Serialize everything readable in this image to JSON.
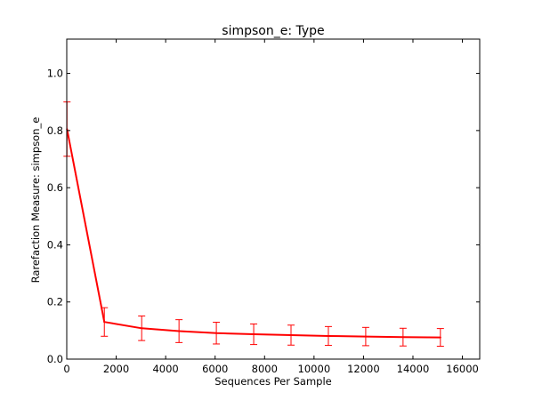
{
  "chart_data": {
    "type": "line",
    "title": "simpson_e: Type",
    "xlabel": "Sequences Per Sample",
    "ylabel": "Rarefaction Measure: simpson_e",
    "xlim": [
      0,
      16700
    ],
    "ylim": [
      0,
      1.12
    ],
    "xticks": [
      0,
      2000,
      4000,
      6000,
      8000,
      10000,
      12000,
      14000,
      16000
    ],
    "xtick_labels": [
      "0",
      "2000",
      "4000",
      "6000",
      "8000",
      "10000",
      "12000",
      "14000",
      "16000"
    ],
    "yticks": [
      0.0,
      0.2,
      0.4,
      0.6,
      0.8,
      1.0
    ],
    "ytick_labels": [
      "0.0",
      "0.2",
      "0.4",
      "0.6",
      "0.8",
      "1.0"
    ],
    "grid": false,
    "series": [
      {
        "color": "#ff0000",
        "x": [
          10,
          1520,
          3030,
          4540,
          6050,
          7560,
          9070,
          10580,
          12090,
          13600,
          15110
        ],
        "y": [
          0.805,
          0.13,
          0.108,
          0.098,
          0.091,
          0.087,
          0.084,
          0.081,
          0.079,
          0.077,
          0.076
        ],
        "yerr": [
          0.095,
          0.05,
          0.043,
          0.04,
          0.038,
          0.036,
          0.035,
          0.033,
          0.032,
          0.031,
          0.031
        ]
      }
    ]
  }
}
